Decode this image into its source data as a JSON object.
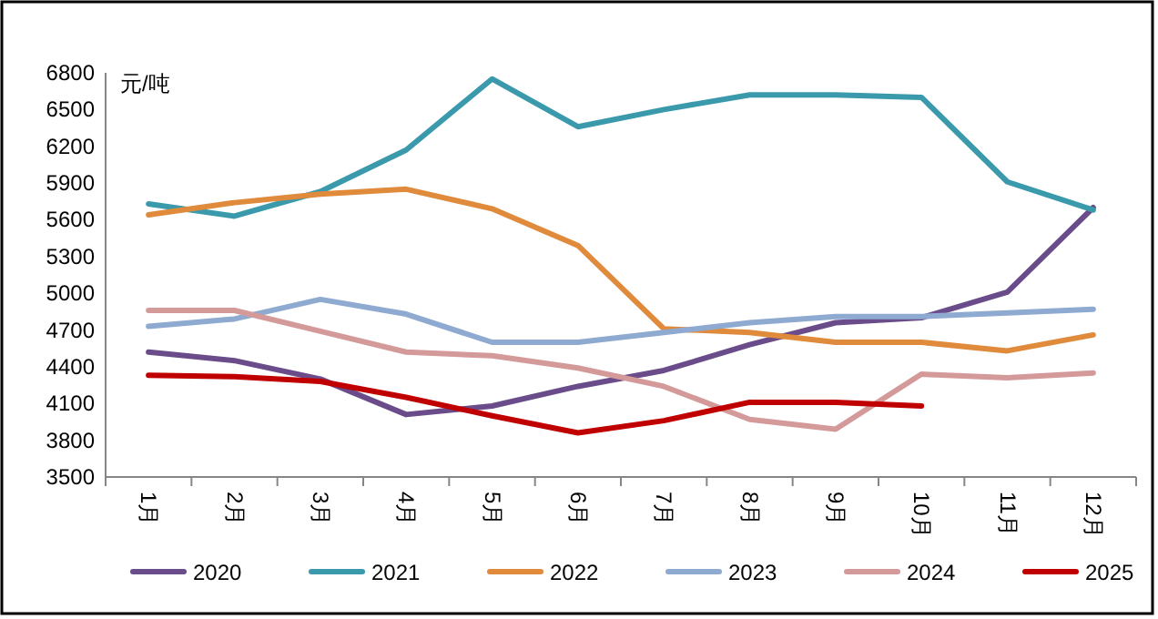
{
  "chart_data": {
    "type": "line",
    "ylabel": "元/吨",
    "categories": [
      "1月",
      "2月",
      "3月",
      "4月",
      "5月",
      "6月",
      "7月",
      "8月",
      "9月",
      "10月",
      "11月",
      "12月"
    ],
    "ylim": [
      3500,
      6800
    ],
    "yticks": [
      3500,
      3800,
      4100,
      4400,
      4700,
      5000,
      5300,
      5600,
      5900,
      6200,
      6500,
      6800
    ],
    "grid": false,
    "legend": "bottom",
    "marker": "none",
    "line_style": "solid",
    "series": [
      {
        "name": "2020",
        "color": "#6a4c8a",
        "values": [
          4520,
          4450,
          4300,
          4010,
          4080,
          4240,
          4370,
          4580,
          4760,
          4800,
          5010,
          5700
        ]
      },
      {
        "name": "2021",
        "color": "#3a9aac",
        "values": [
          5730,
          5630,
          5830,
          6170,
          6750,
          6360,
          6500,
          6620,
          6620,
          6600,
          5910,
          5680
        ]
      },
      {
        "name": "2022",
        "color": "#e08a3c",
        "values": [
          5640,
          5740,
          5810,
          5850,
          5690,
          5390,
          4710,
          4680,
          4600,
          4600,
          4530,
          4660
        ]
      },
      {
        "name": "2023",
        "color": "#8faad0",
        "values": [
          4730,
          4790,
          4950,
          4830,
          4600,
          4600,
          4680,
          4760,
          4810,
          4810,
          4840,
          4870
        ]
      },
      {
        "name": "2024",
        "color": "#d49a9a",
        "values": [
          4860,
          4860,
          4690,
          4520,
          4490,
          4390,
          4240,
          3970,
          3890,
          4340,
          4310,
          4350
        ]
      },
      {
        "name": "2025",
        "color": "#c00000",
        "values": [
          4330,
          4320,
          4280,
          4150,
          4000,
          3860,
          3960,
          4110,
          4110,
          4080,
          null,
          null
        ]
      }
    ]
  }
}
